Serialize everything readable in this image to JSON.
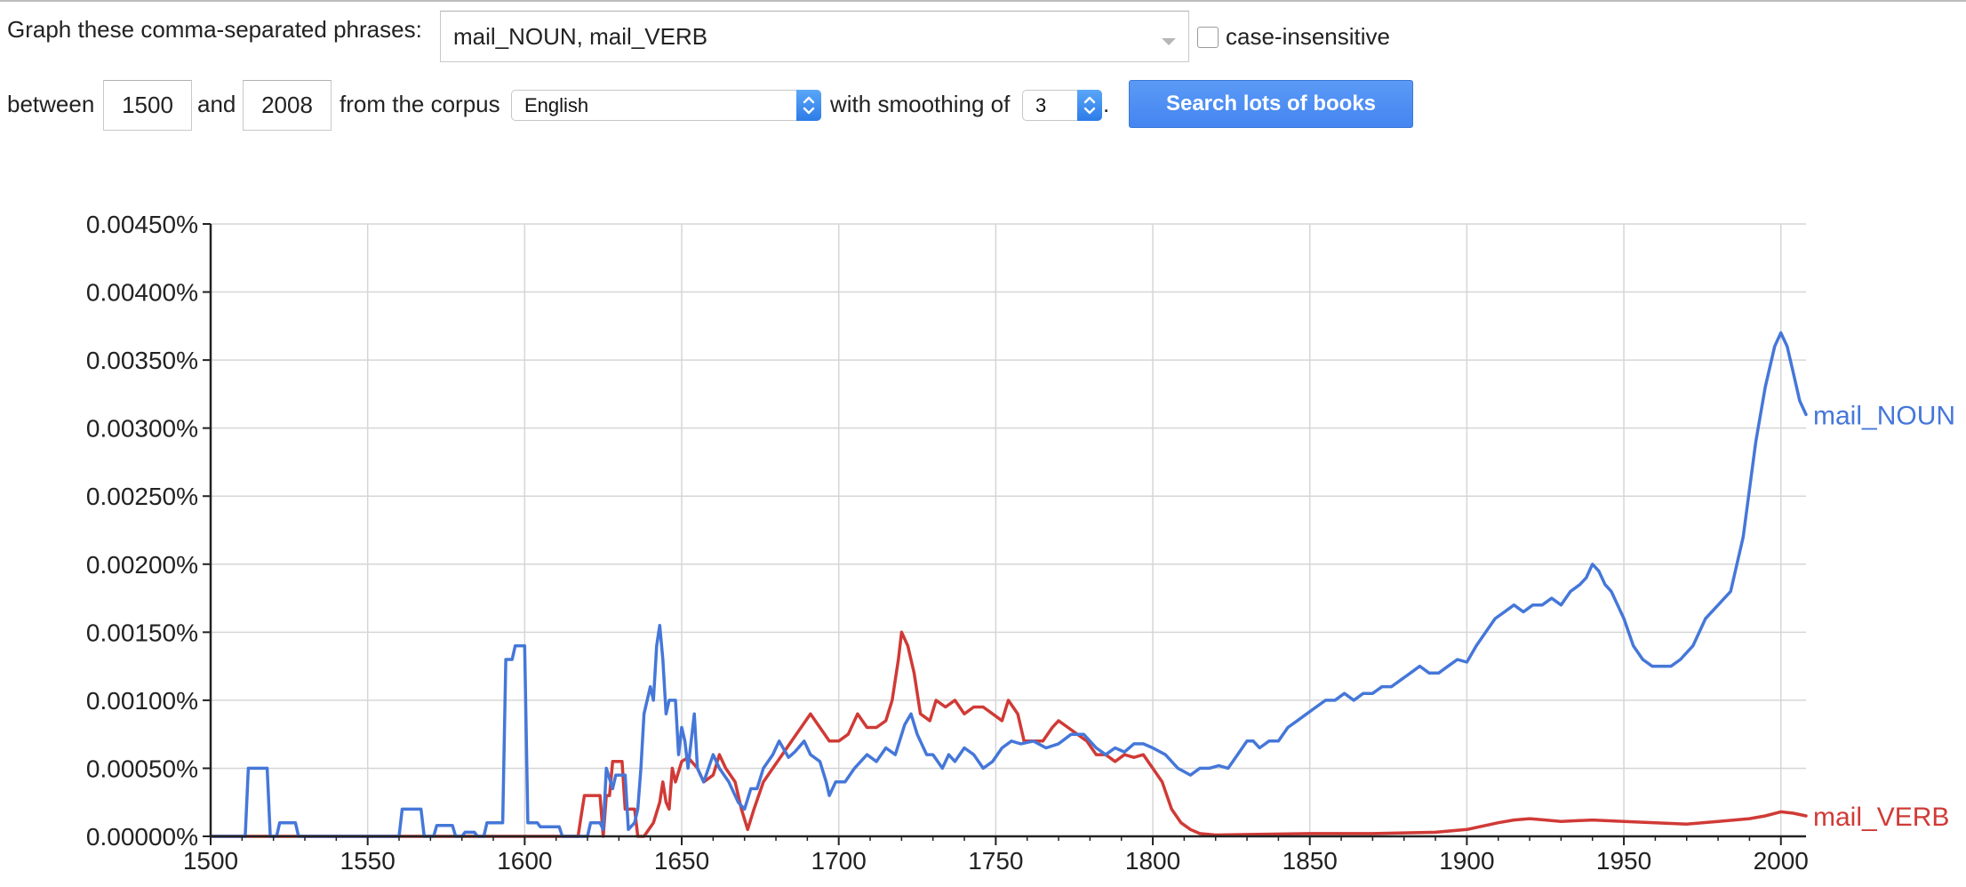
{
  "form": {
    "phrases_label": "Graph these comma-separated phrases:",
    "phrases_value": "mail_NOUN, mail_VERB",
    "case_insensitive_label": "case-insensitive",
    "between_label": "between",
    "start_year": "1500",
    "and_label": "and",
    "end_year": "2008",
    "corpus_label": "from the corpus",
    "corpus_value": "English",
    "smoothing_label": "with smoothing of",
    "smoothing_value": "3",
    "period": ".",
    "search_button": "Search lots of books"
  },
  "chart_data": {
    "type": "line",
    "title": "",
    "xlabel": "",
    "ylabel": "",
    "xlim": [
      1500,
      2008
    ],
    "ylim": [
      0,
      0.0045
    ],
    "x_ticks": [
      "1500",
      "1550",
      "1600",
      "1650",
      "1700",
      "1750",
      "1800",
      "1850",
      "1900",
      "1950",
      "2000"
    ],
    "y_ticks": [
      "0.00000%",
      "0.00050%",
      "0.00100%",
      "0.00150%",
      "0.00200%",
      "0.00250%",
      "0.00300%",
      "0.00350%",
      "0.00400%",
      "0.00450%"
    ],
    "grid": true,
    "legend": "labels at line ends (right)",
    "series": [
      {
        "name": "mail_NOUN",
        "color": "#4577d9",
        "points": [
          [
            1500,
            0
          ],
          [
            1511,
            0
          ],
          [
            1512,
            0.0005
          ],
          [
            1518,
            0.0005
          ],
          [
            1519,
            0
          ],
          [
            1521,
            0
          ],
          [
            1522,
            0.0001
          ],
          [
            1527,
            0.0001
          ],
          [
            1528,
            0
          ],
          [
            1560,
            0
          ],
          [
            1561,
            0.0002
          ],
          [
            1567,
            0.0002
          ],
          [
            1568,
            0
          ],
          [
            1571,
            0
          ],
          [
            1572,
            8e-05
          ],
          [
            1577,
            8e-05
          ],
          [
            1578,
            0
          ],
          [
            1580,
            0
          ],
          [
            1581,
            3e-05
          ],
          [
            1584,
            3e-05
          ],
          [
            1585,
            0
          ],
          [
            1587,
            0
          ],
          [
            1588,
            0.0001
          ],
          [
            1593,
            0.0001
          ],
          [
            1594,
            0.0013
          ],
          [
            1596,
            0.0013
          ],
          [
            1597,
            0.0014
          ],
          [
            1600,
            0.0014
          ],
          [
            1601,
            0.0001
          ],
          [
            1604,
            0.0001
          ],
          [
            1605,
            7e-05
          ],
          [
            1611,
            7e-05
          ],
          [
            1612,
            0
          ],
          [
            1620,
            0
          ],
          [
            1621,
            0.0001
          ],
          [
            1624,
            0.0001
          ],
          [
            1625,
            5e-05
          ],
          [
            1626,
            0.0005
          ],
          [
            1628,
            0.00035
          ],
          [
            1629,
            0.00045
          ],
          [
            1632,
            0.00045
          ],
          [
            1633,
            5e-05
          ],
          [
            1635,
            0.0001
          ],
          [
            1636,
            0.0002
          ],
          [
            1637,
            0.0005
          ],
          [
            1638,
            0.0009
          ],
          [
            1640,
            0.0011
          ],
          [
            1641,
            0.001
          ],
          [
            1642,
            0.0014
          ],
          [
            1643,
            0.00155
          ],
          [
            1644,
            0.0013
          ],
          [
            1645,
            0.0009
          ],
          [
            1646,
            0.001
          ],
          [
            1648,
            0.001
          ],
          [
            1649,
            0.0006
          ],
          [
            1650,
            0.0008
          ],
          [
            1651,
            0.0007
          ],
          [
            1652,
            0.0005
          ],
          [
            1654,
            0.0009
          ],
          [
            1655,
            0.0005
          ],
          [
            1657,
            0.0004
          ],
          [
            1660,
            0.0006
          ],
          [
            1662,
            0.0005
          ],
          [
            1665,
            0.0004
          ],
          [
            1668,
            0.00025
          ],
          [
            1670,
            0.0002
          ],
          [
            1672,
            0.00035
          ],
          [
            1674,
            0.00035
          ],
          [
            1676,
            0.0005
          ],
          [
            1679,
            0.0006
          ],
          [
            1681,
            0.0007
          ],
          [
            1684,
            0.00058
          ],
          [
            1686,
            0.00062
          ],
          [
            1689,
            0.0007
          ],
          [
            1691,
            0.0006
          ],
          [
            1694,
            0.00055
          ],
          [
            1696,
            0.0004
          ],
          [
            1697,
            0.0003
          ],
          [
            1699,
            0.0004
          ],
          [
            1702,
            0.0004
          ],
          [
            1705,
            0.0005
          ],
          [
            1709,
            0.0006
          ],
          [
            1712,
            0.00055
          ],
          [
            1715,
            0.00065
          ],
          [
            1718,
            0.0006
          ],
          [
            1721,
            0.00082
          ],
          [
            1723,
            0.0009
          ],
          [
            1725,
            0.00075
          ],
          [
            1728,
            0.0006
          ],
          [
            1730,
            0.0006
          ],
          [
            1733,
            0.0005
          ],
          [
            1735,
            0.0006
          ],
          [
            1737,
            0.00055
          ],
          [
            1740,
            0.00065
          ],
          [
            1743,
            0.0006
          ],
          [
            1746,
            0.0005
          ],
          [
            1749,
            0.00055
          ],
          [
            1752,
            0.00065
          ],
          [
            1755,
            0.0007
          ],
          [
            1758,
            0.00068
          ],
          [
            1762,
            0.0007
          ],
          [
            1766,
            0.00065
          ],
          [
            1770,
            0.00068
          ],
          [
            1774,
            0.00075
          ],
          [
            1778,
            0.00075
          ],
          [
            1782,
            0.00065
          ],
          [
            1785,
            0.0006
          ],
          [
            1788,
            0.00065
          ],
          [
            1791,
            0.00062
          ],
          [
            1794,
            0.00068
          ],
          [
            1797,
            0.00068
          ],
          [
            1800,
            0.00065
          ],
          [
            1804,
            0.0006
          ],
          [
            1808,
            0.0005
          ],
          [
            1812,
            0.00045
          ],
          [
            1815,
            0.0005
          ],
          [
            1818,
            0.0005
          ],
          [
            1821,
            0.00052
          ],
          [
            1824,
            0.0005
          ],
          [
            1827,
            0.0006
          ],
          [
            1830,
            0.0007
          ],
          [
            1832,
            0.0007
          ],
          [
            1834,
            0.00065
          ],
          [
            1837,
            0.0007
          ],
          [
            1840,
            0.0007
          ],
          [
            1843,
            0.0008
          ],
          [
            1846,
            0.00085
          ],
          [
            1849,
            0.0009
          ],
          [
            1852,
            0.00095
          ],
          [
            1855,
            0.001
          ],
          [
            1858,
            0.001
          ],
          [
            1861,
            0.00105
          ],
          [
            1864,
            0.001
          ],
          [
            1867,
            0.00105
          ],
          [
            1870,
            0.00105
          ],
          [
            1873,
            0.0011
          ],
          [
            1876,
            0.0011
          ],
          [
            1879,
            0.00115
          ],
          [
            1882,
            0.0012
          ],
          [
            1885,
            0.00125
          ],
          [
            1888,
            0.0012
          ],
          [
            1891,
            0.0012
          ],
          [
            1894,
            0.00125
          ],
          [
            1897,
            0.0013
          ],
          [
            1900,
            0.00128
          ],
          [
            1903,
            0.0014
          ],
          [
            1906,
            0.0015
          ],
          [
            1909,
            0.0016
          ],
          [
            1912,
            0.00165
          ],
          [
            1915,
            0.0017
          ],
          [
            1918,
            0.00165
          ],
          [
            1921,
            0.0017
          ],
          [
            1924,
            0.0017
          ],
          [
            1927,
            0.00175
          ],
          [
            1930,
            0.0017
          ],
          [
            1933,
            0.0018
          ],
          [
            1936,
            0.00185
          ],
          [
            1938,
            0.0019
          ],
          [
            1940,
            0.002
          ],
          [
            1942,
            0.00195
          ],
          [
            1944,
            0.00185
          ],
          [
            1946,
            0.0018
          ],
          [
            1948,
            0.0017
          ],
          [
            1950,
            0.0016
          ],
          [
            1953,
            0.0014
          ],
          [
            1956,
            0.0013
          ],
          [
            1959,
            0.00125
          ],
          [
            1962,
            0.00125
          ],
          [
            1965,
            0.00125
          ],
          [
            1968,
            0.0013
          ],
          [
            1972,
            0.0014
          ],
          [
            1976,
            0.0016
          ],
          [
            1980,
            0.0017
          ],
          [
            1984,
            0.0018
          ],
          [
            1988,
            0.0022
          ],
          [
            1992,
            0.0029
          ],
          [
            1995,
            0.0033
          ],
          [
            1998,
            0.0036
          ],
          [
            2000,
            0.0037
          ],
          [
            2002,
            0.0036
          ],
          [
            2004,
            0.0034
          ],
          [
            2006,
            0.0032
          ],
          [
            2008,
            0.0031
          ]
        ]
      },
      {
        "name": "mail_VERB",
        "color": "#d03a36",
        "points": [
          [
            1500,
            0
          ],
          [
            1617,
            0
          ],
          [
            1618,
            0.00015
          ],
          [
            1619,
            0.0003
          ],
          [
            1624,
            0.0003
          ],
          [
            1625,
            0
          ],
          [
            1626,
            0.0003
          ],
          [
            1627,
            0.0003
          ],
          [
            1628,
            0.00055
          ],
          [
            1631,
            0.00055
          ],
          [
            1632,
            0.0002
          ],
          [
            1635,
            0.0002
          ],
          [
            1636,
            0
          ],
          [
            1638,
            0
          ],
          [
            1641,
            0.0001
          ],
          [
            1643,
            0.00025
          ],
          [
            1644,
            0.0004
          ],
          [
            1645,
            0.00025
          ],
          [
            1646,
            0.0002
          ],
          [
            1647,
            0.0005
          ],
          [
            1648,
            0.0004
          ],
          [
            1650,
            0.00055
          ],
          [
            1652,
            0.00058
          ],
          [
            1655,
            0.0005
          ],
          [
            1657,
            0.0004
          ],
          [
            1660,
            0.00045
          ],
          [
            1662,
            0.0006
          ],
          [
            1664,
            0.0005
          ],
          [
            1667,
            0.0004
          ],
          [
            1669,
            0.0002
          ],
          [
            1671,
            5e-05
          ],
          [
            1673,
            0.0002
          ],
          [
            1676,
            0.0004
          ],
          [
            1679,
            0.0005
          ],
          [
            1682,
            0.0006
          ],
          [
            1685,
            0.0007
          ],
          [
            1688,
            0.0008
          ],
          [
            1691,
            0.0009
          ],
          [
            1694,
            0.0008
          ],
          [
            1697,
            0.0007
          ],
          [
            1700,
            0.0007
          ],
          [
            1703,
            0.00075
          ],
          [
            1706,
            0.0009
          ],
          [
            1709,
            0.0008
          ],
          [
            1712,
            0.0008
          ],
          [
            1715,
            0.00085
          ],
          [
            1717,
            0.001
          ],
          [
            1719,
            0.0013
          ],
          [
            1720,
            0.0015
          ],
          [
            1722,
            0.0014
          ],
          [
            1724,
            0.0012
          ],
          [
            1726,
            0.0009
          ],
          [
            1729,
            0.00085
          ],
          [
            1731,
            0.001
          ],
          [
            1734,
            0.00095
          ],
          [
            1737,
            0.001
          ],
          [
            1740,
            0.0009
          ],
          [
            1743,
            0.00095
          ],
          [
            1746,
            0.00095
          ],
          [
            1749,
            0.0009
          ],
          [
            1752,
            0.00085
          ],
          [
            1754,
            0.001
          ],
          [
            1757,
            0.0009
          ],
          [
            1759,
            0.0007
          ],
          [
            1762,
            0.0007
          ],
          [
            1765,
            0.0007
          ],
          [
            1768,
            0.0008
          ],
          [
            1770,
            0.00085
          ],
          [
            1773,
            0.0008
          ],
          [
            1776,
            0.00075
          ],
          [
            1779,
            0.0007
          ],
          [
            1782,
            0.0006
          ],
          [
            1785,
            0.0006
          ],
          [
            1788,
            0.00055
          ],
          [
            1791,
            0.0006
          ],
          [
            1794,
            0.00058
          ],
          [
            1797,
            0.0006
          ],
          [
            1800,
            0.0005
          ],
          [
            1803,
            0.0004
          ],
          [
            1806,
            0.0002
          ],
          [
            1809,
            0.0001
          ],
          [
            1812,
            5e-05
          ],
          [
            1815,
            2e-05
          ],
          [
            1820,
            1e-05
          ],
          [
            1850,
            2e-05
          ],
          [
            1870,
            2e-05
          ],
          [
            1890,
            3e-05
          ],
          [
            1900,
            5e-05
          ],
          [
            1910,
            0.0001
          ],
          [
            1915,
            0.00012
          ],
          [
            1920,
            0.00013
          ],
          [
            1925,
            0.00012
          ],
          [
            1930,
            0.00011
          ],
          [
            1940,
            0.00012
          ],
          [
            1950,
            0.00011
          ],
          [
            1960,
            0.0001
          ],
          [
            1970,
            9e-05
          ],
          [
            1980,
            0.00011
          ],
          [
            1990,
            0.00013
          ],
          [
            1995,
            0.00015
          ],
          [
            2000,
            0.00018
          ],
          [
            2004,
            0.00017
          ],
          [
            2008,
            0.00015
          ]
        ]
      }
    ]
  }
}
